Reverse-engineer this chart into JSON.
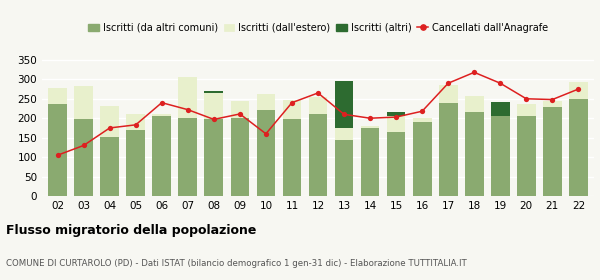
{
  "years": [
    "02",
    "03",
    "04",
    "05",
    "06",
    "07",
    "08",
    "09",
    "10",
    "11",
    "12",
    "13",
    "14",
    "15",
    "16",
    "17",
    "18",
    "19",
    "20",
    "21",
    "22"
  ],
  "iscritti_comuni": [
    237,
    198,
    153,
    170,
    205,
    200,
    198,
    200,
    222,
    197,
    210,
    145,
    175,
    165,
    190,
    240,
    215,
    205,
    205,
    230,
    250
  ],
  "iscritti_estero": [
    40,
    85,
    78,
    40,
    5,
    105,
    68,
    45,
    40,
    50,
    45,
    30,
    5,
    40,
    10,
    45,
    42,
    0,
    32,
    15,
    42
  ],
  "iscritti_altri": [
    0,
    0,
    0,
    0,
    0,
    0,
    3,
    0,
    0,
    0,
    0,
    120,
    0,
    12,
    0,
    0,
    0,
    38,
    0,
    0,
    0
  ],
  "cancellati": [
    105,
    130,
    175,
    183,
    240,
    222,
    197,
    211,
    160,
    240,
    265,
    210,
    200,
    203,
    218,
    290,
    318,
    290,
    250,
    248,
    275
  ],
  "color_comuni": "#8aaa70",
  "color_estero": "#e8f0cc",
  "color_altri": "#2d6b30",
  "color_cancellati": "#dd2020",
  "ylim_min": 0,
  "ylim_max": 360,
  "yticks": [
    0,
    50,
    100,
    150,
    200,
    250,
    300,
    350
  ],
  "title": "Flusso migratorio della popolazione",
  "subtitle": "COMUNE DI CURTAROLO (PD) - Dati ISTAT (bilancio demografico 1 gen-31 dic) - Elaborazione TUTTITALIA.IT",
  "legend_labels": [
    "Iscritti (da altri comuni)",
    "Iscritti (dall'estero)",
    "Iscritti (altri)",
    "Cancellati dall'Anagrafe"
  ],
  "background_color": "#f7f7f2",
  "grid_color": "#ffffff"
}
